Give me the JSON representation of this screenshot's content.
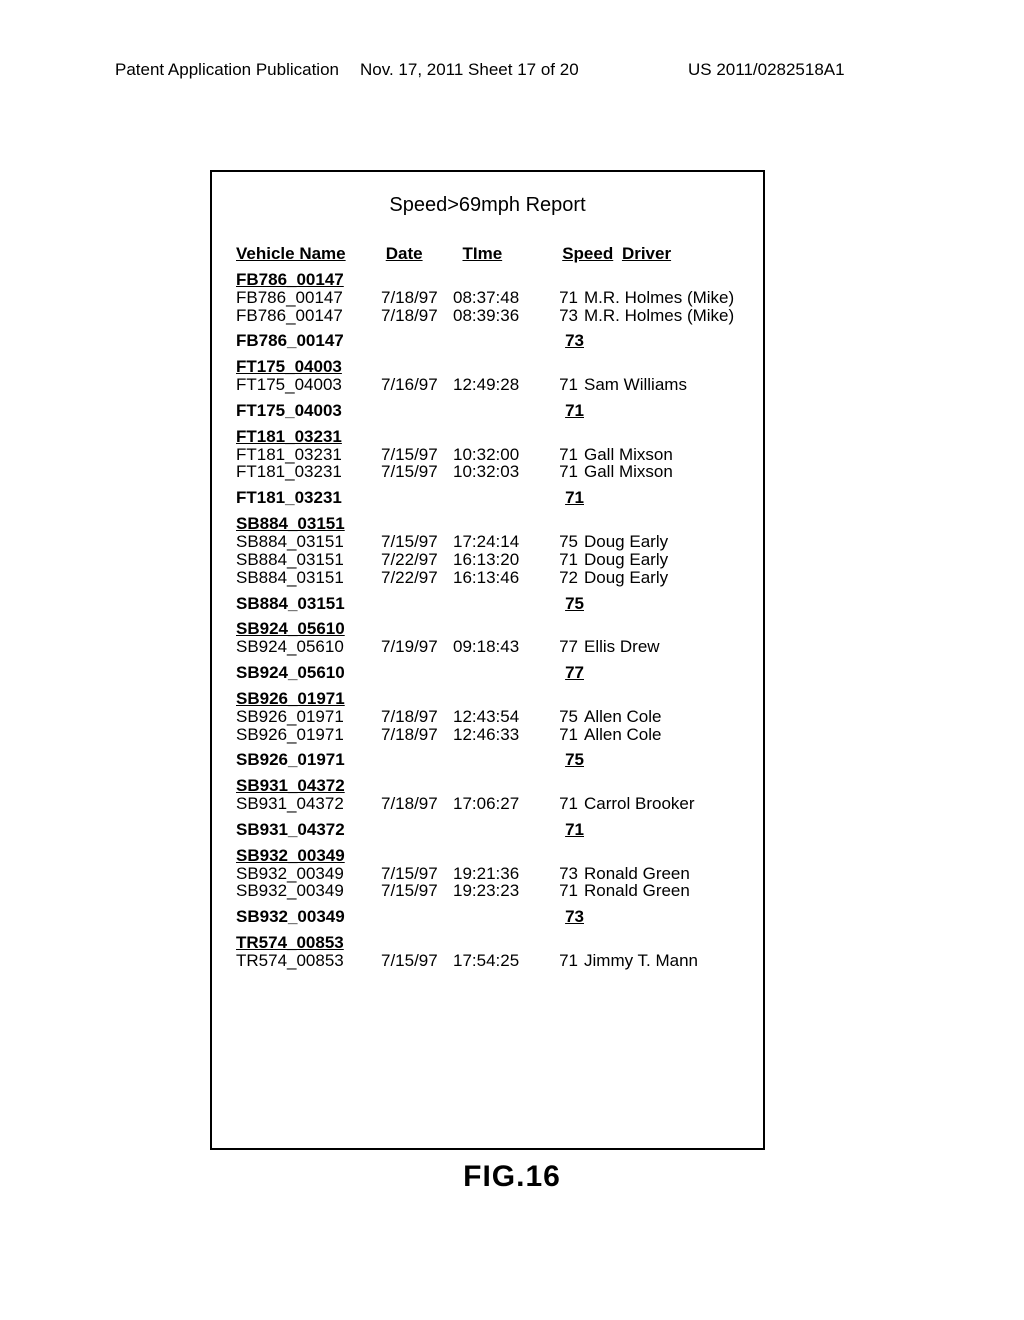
{
  "header": {
    "left": "Patent Application Publication",
    "mid": "Nov. 17, 2011  Sheet 17 of 20",
    "right": "US 2011/0282518A1"
  },
  "report": {
    "title": "Speed>69mph Report",
    "columns": {
      "vehicle": "Vehicle Name",
      "date": "Date",
      "time": "TIme",
      "speed": "Speed",
      "driver": "Driver"
    },
    "groups": [
      {
        "header": "FB786_00147",
        "rows": [
          {
            "vehicle": "FB786_00147",
            "date": "7/18/97",
            "time": "08:37:48",
            "speed": "71",
            "driver": "M.R. Holmes (Mike)"
          },
          {
            "vehicle": "FB786_00147",
            "date": "7/18/97",
            "time": "08:39:36",
            "speed": "73",
            "driver": "M.R. Holmes (Mike)"
          }
        ],
        "summary_vehicle": "FB786_00147",
        "summary_speed": "73"
      },
      {
        "header": "FT175_04003",
        "rows": [
          {
            "vehicle": "FT175_04003",
            "date": "7/16/97",
            "time": "12:49:28",
            "speed": "71",
            "driver": "Sam Williams"
          }
        ],
        "summary_vehicle": "FT175_04003",
        "summary_speed": "71"
      },
      {
        "header": "FT181_03231",
        "rows": [
          {
            "vehicle": "FT181_03231",
            "date": "7/15/97",
            "time": "10:32:00",
            "speed": "71",
            "driver": "Gall Mixson"
          },
          {
            "vehicle": "FT181_03231",
            "date": "7/15/97",
            "time": "10:32:03",
            "speed": "71",
            "driver": "Gall Mixson"
          }
        ],
        "summary_vehicle": "FT181_03231",
        "summary_speed": "71"
      },
      {
        "header": "SB884_03151",
        "rows": [
          {
            "vehicle": "SB884_03151",
            "date": "7/15/97",
            "time": "17:24:14",
            "speed": "75",
            "driver": "Doug Early"
          },
          {
            "vehicle": "SB884_03151",
            "date": "7/22/97",
            "time": "16:13:20",
            "speed": "71",
            "driver": "Doug Early"
          },
          {
            "vehicle": "SB884_03151",
            "date": "7/22/97",
            "time": "16:13:46",
            "speed": "72",
            "driver": "Doug Early"
          }
        ],
        "summary_vehicle": "SB884_03151",
        "summary_speed": "75"
      },
      {
        "header": "SB924_05610",
        "rows": [
          {
            "vehicle": "SB924_05610",
            "date": "7/19/97",
            "time": "09:18:43",
            "speed": "77",
            "driver": "Ellis Drew"
          }
        ],
        "summary_vehicle": "SB924_05610",
        "summary_speed": "77"
      },
      {
        "header": "SB926_01971",
        "rows": [
          {
            "vehicle": "SB926_01971",
            "date": "7/18/97",
            "time": "12:43:54",
            "speed": "75",
            "driver": "Allen Cole"
          },
          {
            "vehicle": "SB926_01971",
            "date": "7/18/97",
            "time": "12:46:33",
            "speed": "71",
            "driver": "Allen Cole"
          }
        ],
        "summary_vehicle": "SB926_01971",
        "summary_speed": "75"
      },
      {
        "header": "SB931_04372",
        "rows": [
          {
            "vehicle": "SB931_04372",
            "date": "7/18/97",
            "time": "17:06:27",
            "speed": "71",
            "driver": "Carrol Brooker"
          }
        ],
        "summary_vehicle": "SB931_04372",
        "summary_speed": "71"
      },
      {
        "header": "SB932_00349",
        "rows": [
          {
            "vehicle": "SB932_00349",
            "date": "7/15/97",
            "time": "19:21:36",
            "speed": "73",
            "driver": "Ronald Green"
          },
          {
            "vehicle": "SB932_00349",
            "date": "7/15/97",
            "time": "19:23:23",
            "speed": "71",
            "driver": "Ronald Green"
          }
        ],
        "summary_vehicle": "SB932_00349",
        "summary_speed": "73"
      },
      {
        "header": "TR574_00853",
        "rows": [
          {
            "vehicle": "TR574_00853",
            "date": "7/15/97",
            "time": "17:54:25",
            "speed": "71",
            "driver": "Jimmy T. Mann"
          }
        ],
        "summary_vehicle": "",
        "summary_speed": ""
      }
    ]
  },
  "figure_label": "FIG.16"
}
